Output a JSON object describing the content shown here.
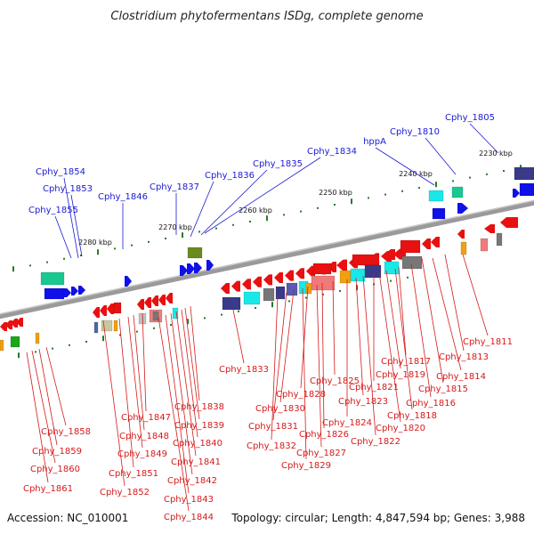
{
  "title": "Clostridium phytofermentans ISDg, complete genome",
  "footer": {
    "accession": "Accession: NC_010001",
    "summary": "Topology: circular; Length: 4,847,594 bp; Genes: 3,988"
  },
  "ticks": [
    "2230 kbp",
    "2240 kbp",
    "2250 kbp",
    "2260 kbp",
    "2270 kbp",
    "2280 kbp"
  ],
  "colors": {
    "forward_label": "#1a1ad6",
    "reverse_label": "#d61a1a",
    "backbone": "#9a9a9a",
    "tick": "#2a7a2a"
  },
  "forward_labels": [
    "Cphy_1805",
    "Cphy_1810",
    "hppA",
    "Cphy_1834",
    "Cphy_1835",
    "Cphy_1836",
    "Cphy_1837",
    "Cphy_1846",
    "Cphy_1853",
    "Cphy_1854",
    "Cphy_1855"
  ],
  "reverse_labels": [
    "Cphy_1811",
    "Cphy_1813",
    "Cphy_1814",
    "Cphy_1815",
    "Cphy_1816",
    "Cphy_1817",
    "Cphy_1818",
    "Cphy_1819",
    "Cphy_1820",
    "Cphy_1821",
    "Cphy_1822",
    "Cphy_1823",
    "Cphy_1824",
    "Cphy_1825",
    "Cphy_1826",
    "Cphy_1827",
    "Cphy_1828",
    "Cphy_1829",
    "Cphy_1830",
    "Cphy_1831",
    "Cphy_1832",
    "Cphy_1833",
    "Cphy_1838",
    "Cphy_1839",
    "Cphy_1840",
    "Cphy_1841",
    "Cphy_1842",
    "Cphy_1843",
    "Cphy_1844",
    "Cphy_1847",
    "Cphy_1848",
    "Cphy_1849",
    "Cphy_1851",
    "Cphy_1852",
    "Cphy_1858",
    "Cphy_1859",
    "Cphy_1860",
    "Cphy_1861"
  ]
}
